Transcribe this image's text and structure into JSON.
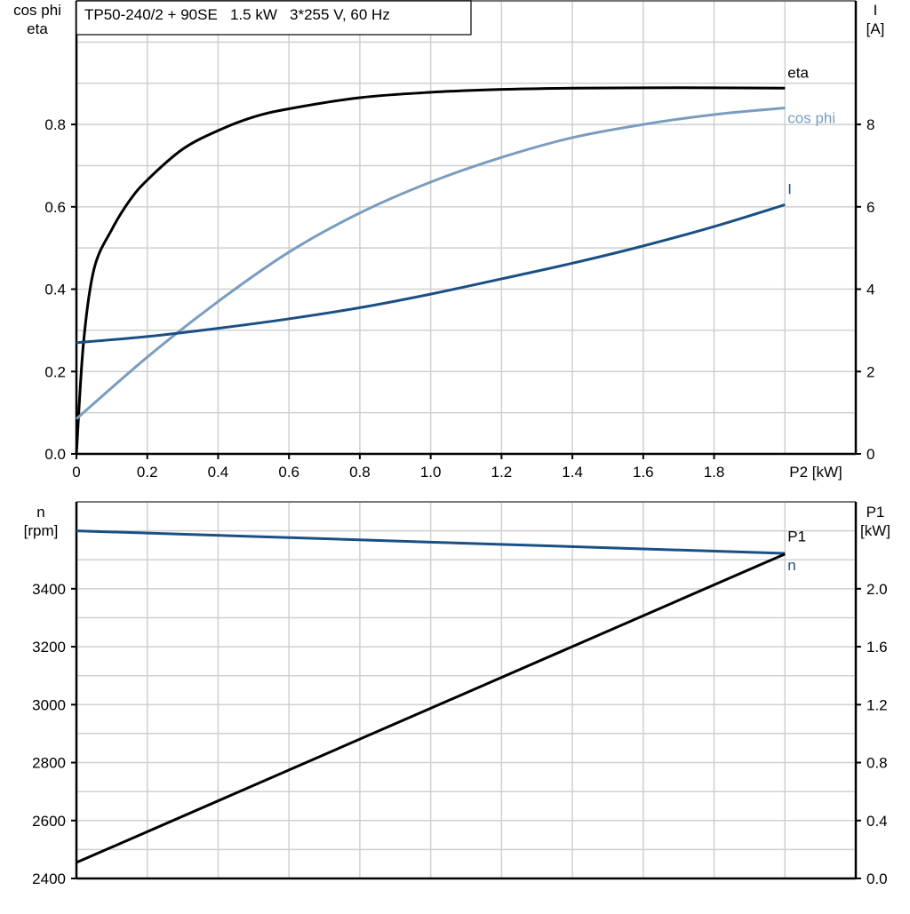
{
  "chart_data": [
    {
      "type": "line",
      "title": "TP50-240/2 + 90SE   1.5 kW   3*255 V, 60 Hz",
      "xlabel": "P2 [kW]",
      "ylabel_left": [
        "cos phi",
        "eta"
      ],
      "ylabel_right": [
        "I",
        "[A]"
      ],
      "xlim": [
        0,
        2.2
      ],
      "ylim_left": [
        0,
        1.1
      ],
      "ylim_right": [
        0,
        11
      ],
      "x_ticks": [
        "0",
        "0.2",
        "0.4",
        "0.6",
        "0.8",
        "1.0",
        "1.2",
        "1.4",
        "1.6",
        "1.8"
      ],
      "y_ticks_left": [
        "0.0",
        "0.2",
        "0.4",
        "0.6",
        "0.8"
      ],
      "y_ticks_right": [
        "0",
        "2",
        "4",
        "6",
        "8"
      ],
      "grid": true,
      "series": [
        {
          "name": "eta",
          "axis": "left",
          "color": "#000000",
          "x": [
            0,
            0.02,
            0.05,
            0.1,
            0.15,
            0.2,
            0.3,
            0.4,
            0.5,
            0.6,
            0.8,
            1.0,
            1.2,
            1.4,
            1.6,
            1.8,
            2.0
          ],
          "y": [
            0,
            0.27,
            0.45,
            0.545,
            0.615,
            0.665,
            0.74,
            0.785,
            0.818,
            0.838,
            0.865,
            0.878,
            0.885,
            0.888,
            0.889,
            0.889,
            0.888
          ]
        },
        {
          "name": "cos phi",
          "axis": "left",
          "color": "#7a9dbf",
          "x": [
            0,
            0.2,
            0.4,
            0.6,
            0.8,
            1.0,
            1.2,
            1.4,
            1.6,
            1.8,
            2.0
          ],
          "y": [
            0.085,
            0.235,
            0.37,
            0.49,
            0.585,
            0.66,
            0.72,
            0.768,
            0.8,
            0.824,
            0.84
          ]
        },
        {
          "name": "I",
          "axis": "right",
          "color": "#1a4f85",
          "x": [
            0,
            0.2,
            0.4,
            0.6,
            0.8,
            1.0,
            1.2,
            1.4,
            1.6,
            1.8,
            2.0
          ],
          "y": [
            2.7,
            2.85,
            3.05,
            3.28,
            3.55,
            3.88,
            4.25,
            4.63,
            5.05,
            5.52,
            6.05
          ]
        }
      ]
    },
    {
      "type": "line",
      "xlim": [
        0,
        2.2
      ],
      "ylabel_left": [
        "n",
        "[rpm]"
      ],
      "ylabel_right": [
        "P1",
        "[kW]"
      ],
      "ylim_left": [
        2400,
        3700
      ],
      "ylim_right": [
        0,
        2.6
      ],
      "y_ticks_left": [
        "2400",
        "2600",
        "2800",
        "3000",
        "3200",
        "3400"
      ],
      "y_ticks_right": [
        "0.0",
        "0.4",
        "0.8",
        "1.2",
        "1.6",
        "2.0"
      ],
      "grid": true,
      "series": [
        {
          "name": "n",
          "axis": "left",
          "color": "#1a4f85",
          "x": [
            0,
            2.0
          ],
          "y": [
            3600,
            3522
          ]
        },
        {
          "name": "P1",
          "axis": "right",
          "color": "#000000",
          "x": [
            0,
            2.0
          ],
          "y": [
            0.11,
            2.24
          ]
        }
      ]
    }
  ]
}
